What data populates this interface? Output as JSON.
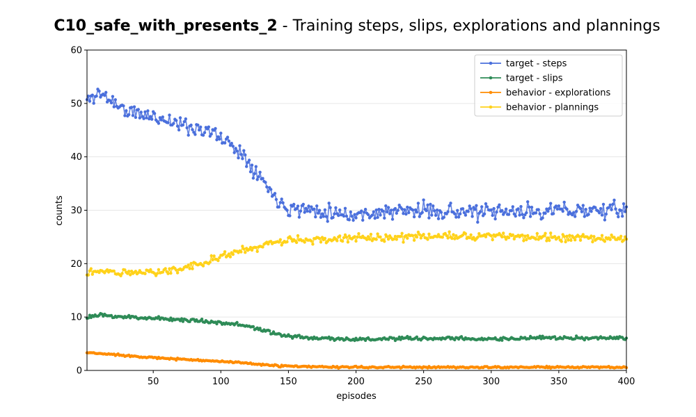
{
  "chart_data": {
    "type": "line",
    "title": "C10_safe_with_presents_2 - Training steps, slips, explorations and plannings",
    "title_bold": "C10_safe_with_presents_2",
    "title_rest": " - Training steps, slips, explorations and plannings",
    "xlabel": "episodes",
    "ylabel": "counts",
    "xlim": [
      1,
      400
    ],
    "ylim": [
      0,
      60
    ],
    "xticks": [
      50,
      100,
      150,
      200,
      250,
      300,
      350,
      400
    ],
    "yticks": [
      0,
      10,
      20,
      30,
      40,
      50,
      60
    ],
    "grid": "horizontal",
    "legend_position": "top-right",
    "episodes": {
      "start": 1,
      "end": 400
    },
    "series": [
      {
        "name": "target - steps",
        "color": "#4a6fdc",
        "noise": 2.2,
        "seed": 11,
        "anchors": [
          [
            1,
            50.5
          ],
          [
            10,
            52
          ],
          [
            20,
            50.5
          ],
          [
            30,
            48.5
          ],
          [
            40,
            48
          ],
          [
            50,
            47.5
          ],
          [
            60,
            47
          ],
          [
            70,
            46
          ],
          [
            80,
            45.5
          ],
          [
            90,
            45
          ],
          [
            100,
            43.5
          ],
          [
            110,
            42
          ],
          [
            120,
            39.5
          ],
          [
            130,
            36
          ],
          [
            140,
            32.5
          ],
          [
            150,
            30.5
          ],
          [
            170,
            30
          ],
          [
            190,
            29.5
          ],
          [
            200,
            29
          ],
          [
            210,
            29.5
          ],
          [
            250,
            30
          ],
          [
            300,
            29.5
          ],
          [
            350,
            30
          ],
          [
            400,
            30
          ]
        ]
      },
      {
        "name": "target - slips",
        "color": "#2e8b57",
        "noise": 0.5,
        "seed": 23,
        "anchors": [
          [
            1,
            10
          ],
          [
            10,
            10.3
          ],
          [
            30,
            10
          ],
          [
            50,
            9.8
          ],
          [
            70,
            9.5
          ],
          [
            90,
            9.2
          ],
          [
            110,
            8.7
          ],
          [
            125,
            8
          ],
          [
            140,
            6.8
          ],
          [
            160,
            6.2
          ],
          [
            200,
            5.8
          ],
          [
            250,
            6
          ],
          [
            300,
            5.9
          ],
          [
            350,
            6.1
          ],
          [
            400,
            6
          ]
        ]
      },
      {
        "name": "behavior - explorations",
        "color": "#ff8c00",
        "noise": 0.25,
        "seed": 37,
        "anchors": [
          [
            1,
            3.3
          ],
          [
            20,
            3
          ],
          [
            40,
            2.6
          ],
          [
            60,
            2.2
          ],
          [
            80,
            2
          ],
          [
            100,
            1.7
          ],
          [
            120,
            1.3
          ],
          [
            140,
            0.9
          ],
          [
            160,
            0.7
          ],
          [
            200,
            0.6
          ],
          [
            300,
            0.6
          ],
          [
            400,
            0.6
          ]
        ]
      },
      {
        "name": "behavior - plannings",
        "color": "#ffd21a",
        "noise": 1.1,
        "seed": 51,
        "anchors": [
          [
            1,
            18.5
          ],
          [
            20,
            18.5
          ],
          [
            40,
            18.3
          ],
          [
            60,
            18.6
          ],
          [
            80,
            19.8
          ],
          [
            90,
            20.5
          ],
          [
            100,
            21.5
          ],
          [
            120,
            22.5
          ],
          [
            140,
            24
          ],
          [
            160,
            24.5
          ],
          [
            200,
            24.8
          ],
          [
            250,
            25
          ],
          [
            300,
            25.2
          ],
          [
            350,
            24.8
          ],
          [
            400,
            24.8
          ]
        ]
      }
    ]
  }
}
